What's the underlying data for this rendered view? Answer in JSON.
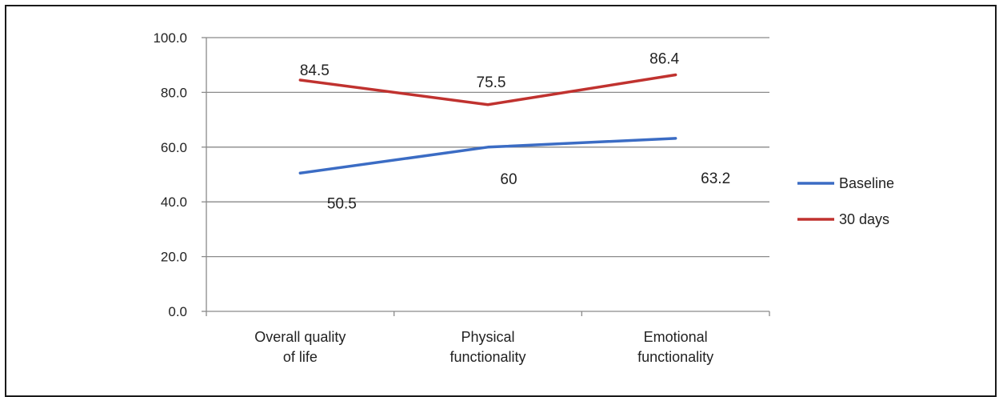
{
  "chart_data": {
    "type": "line",
    "categories": [
      [
        "Overall quality",
        "of life"
      ],
      [
        "Physical",
        "functionality"
      ],
      [
        "Emotional",
        "functionality"
      ]
    ],
    "series": [
      {
        "name": "Baseline",
        "color": "#3b6cc4",
        "values": [
          50.5,
          60,
          63.2
        ],
        "labels": [
          "50.5",
          "60",
          "63.2"
        ]
      },
      {
        "name": "30 days",
        "color": "#c0322f",
        "values": [
          84.5,
          75.5,
          86.4
        ],
        "labels": [
          "84.5",
          "75.5",
          "86.4"
        ]
      }
    ],
    "ylim": [
      0,
      100
    ],
    "yticks": [
      "0.0",
      "20.0",
      "40.0",
      "60.0",
      "80.0",
      "100.0"
    ],
    "grid": true,
    "legend": "right",
    "xlabel": "",
    "ylabel": ""
  }
}
